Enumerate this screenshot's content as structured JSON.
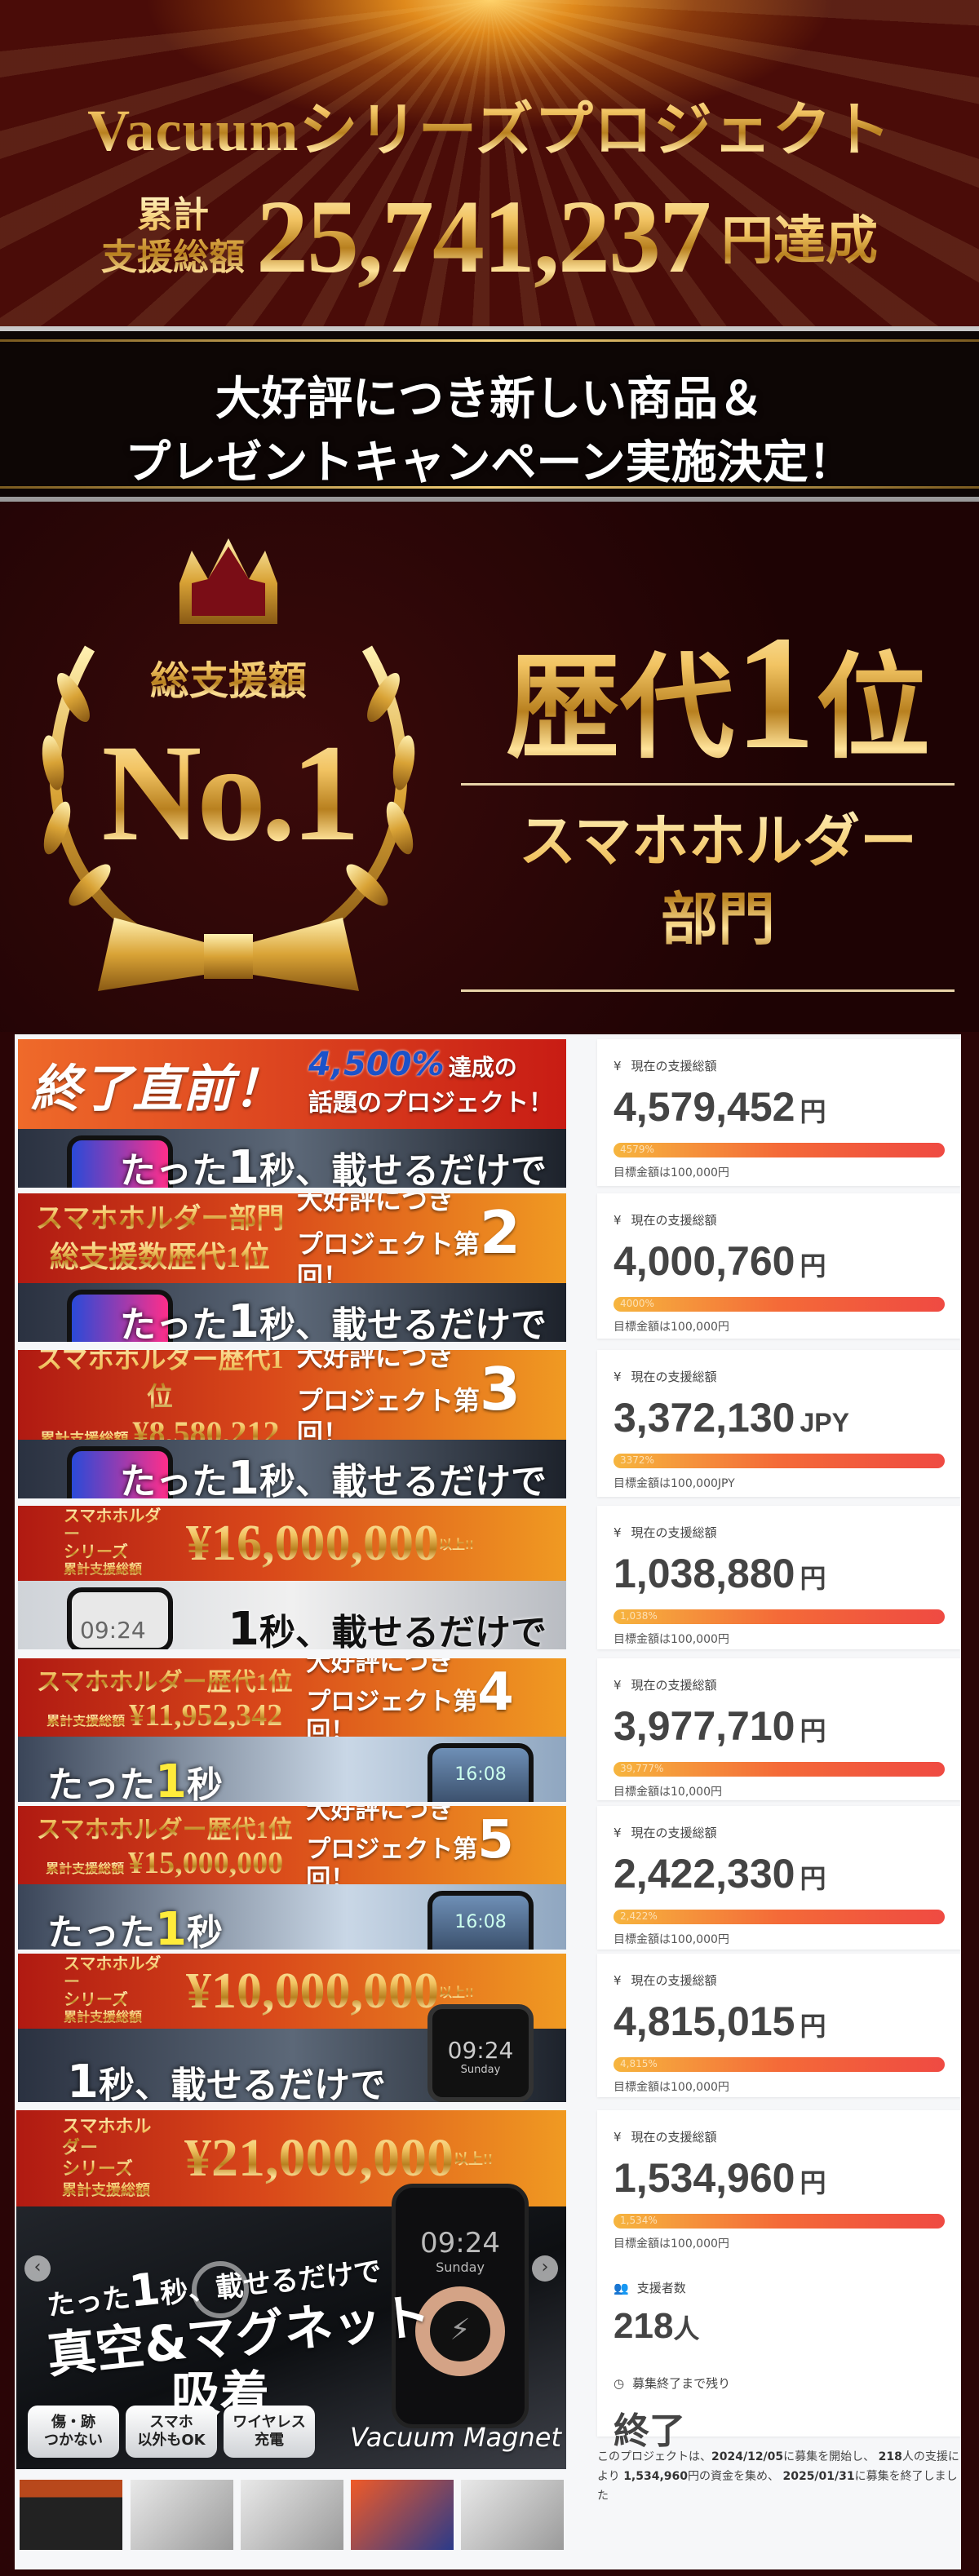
{
  "hero": {
    "title": "Vacuumシリーズプロジェクト",
    "label_line1": "累計",
    "label_line2": "支援総額",
    "amount": "25,741,237",
    "suffix": "円達成"
  },
  "band": {
    "line1": "大好評につき新しい商品＆",
    "line2": "プレゼントキャンペーン実施決定！"
  },
  "badge": {
    "label": "総支援額",
    "no1": "No.1",
    "rank_pre": "歴代",
    "rank_num": "1",
    "rank_post": "位",
    "category_line1": "スマホホルダー",
    "category_line2": "部門"
  },
  "banners": [
    {
      "headline": "終了直前！",
      "sub_pct": "4,500%",
      "sub1": "達成の",
      "sub2": "話題のプロジェクト！",
      "caption_pre": "たった",
      "caption_num": "1",
      "caption_post": "秒、載せるだけで"
    },
    {
      "award1": "スマホホルダー部門",
      "award2": "総支援数歴代1位",
      "popular": "大好評につき",
      "project": "プロジェクト第",
      "round": "2",
      "round_suffix": "回！",
      "caption_pre": "たった",
      "caption_num": "1",
      "caption_post": "秒、載せるだけで"
    },
    {
      "award1": "スマホホルダー歴代1位",
      "award_label": "累計支援総額",
      "award_amount": "¥8,580,212",
      "popular": "大好評につき",
      "project": "プロジェクト第",
      "round": "3",
      "round_suffix": "回！",
      "caption_pre": "たった",
      "caption_num": "1",
      "caption_post": "秒、載せるだけで"
    },
    {
      "series1": "スマホホルダー",
      "series2": "シリーズ",
      "series3": "累計支援総額",
      "amount": "¥16,000,000",
      "amount_suffix": "以上!!",
      "clock": "09:24",
      "caption_num": "1",
      "caption_post": "秒、載せるだけで"
    },
    {
      "award1": "スマホホルダー歴代1位",
      "award_label": "累計支援総額",
      "award_amount": "¥11,952,342",
      "popular": "大好評につき",
      "project": "プロジェクト第",
      "round": "4",
      "round_suffix": "回！",
      "clock": "16:08",
      "caption_pre": "たった",
      "caption_num": "1",
      "caption_post": "秒"
    },
    {
      "award1": "スマホホルダー歴代1位",
      "award_label": "累計支援総額",
      "award_amount": "¥15,000,000",
      "popular": "大好評につき",
      "project": "プロジェクト第",
      "round": "5",
      "round_suffix": "回！",
      "clock": "16:08",
      "caption_pre": "たった",
      "caption_num": "1",
      "caption_post": "秒"
    },
    {
      "series1": "スマホホルダー",
      "series2": "シリーズ",
      "series3": "累計支援総額",
      "amount": "¥10,000,000",
      "amount_suffix": "以上!!",
      "clock": "09:24",
      "clock_day": "Sunday",
      "caption_num": "1",
      "caption_post": "秒、載せるだけで"
    }
  ],
  "main_banner": {
    "series1": "スマホホルダー",
    "series2": "シリーズ",
    "series3": "累計支援総額",
    "amount": "¥21,000,000",
    "amount_suffix": "以上!!",
    "caption_pre": "たった",
    "caption_num": "1",
    "caption_post": "秒、載せるだけで",
    "headline1": "真空&マグネット",
    "headline2": "吸着",
    "clock": "09:24",
    "clock_day": "Sunday",
    "features": [
      "傷・跡\nつかない",
      "スマホ\n以外もOK",
      "ワイヤレス\n充電"
    ],
    "brand": "Vacuum Magnet",
    "prev_icon": "chevron-left-icon",
    "next_icon": "chevron-right-icon",
    "thumbnail_count_label": ""
  },
  "cards": [
    {
      "label": "現在の支援総額",
      "amount": "4,579,452",
      "unit": "円",
      "percent_label": "4579%",
      "percent": 4579,
      "goal": "目標金額は100,000円"
    },
    {
      "label": "現在の支援総額",
      "amount": "4,000,760",
      "unit": "円",
      "percent_label": "4000%",
      "percent": 4000,
      "goal": "目標金額は100,000円"
    },
    {
      "label": "現在の支援総額",
      "amount": "3,372,130",
      "unit": "JPY",
      "percent_label": "3372%",
      "percent": 3372,
      "goal": "目標金額は100,000JPY"
    },
    {
      "label": "現在の支援総額",
      "amount": "1,038,880",
      "unit": "円",
      "percent_label": "1,038%",
      "percent": 1038,
      "goal": "目標金額は100,000円"
    },
    {
      "label": "現在の支援総額",
      "amount": "3,977,710",
      "unit": "円",
      "percent_label": "39,777%",
      "percent": 39777,
      "goal": "目標金額は10,000円"
    },
    {
      "label": "現在の支援総額",
      "amount": "2,422,330",
      "unit": "円",
      "percent_label": "2,422%",
      "percent": 2422,
      "goal": "目標金額は100,000円"
    },
    {
      "label": "現在の支援総額",
      "amount": "4,815,015",
      "unit": "円",
      "percent_label": "4,815%",
      "percent": 4815,
      "goal": "目標金額は100,000円"
    },
    {
      "label": "現在の支援総額",
      "amount": "1,534,960",
      "unit": "円",
      "percent_label": "1,534%",
      "percent": 1534,
      "goal": "目標金額は100,000円",
      "backers_label": "支援者数",
      "backers": "218",
      "backers_unit": "人",
      "remaining_label": "募集終了まで残り",
      "remaining": "終了"
    }
  ],
  "summary": {
    "t1": "このプロジェクトは、",
    "start": "2024/12/05",
    "t2": "に募集を開始し、",
    "backers": "218",
    "t3": "人の支援により",
    "amount": "1,534,960",
    "t4": "円の資金を集め、",
    "end": "2025/01/31",
    "t5": "に募集を終了しました"
  },
  "icons": {
    "currency": "yen-icon",
    "backers": "users-icon",
    "time": "clock-icon"
  },
  "colors": {
    "bar_start": "#f6b53e",
    "bar_end": "#ef4a42",
    "background": "#2a0506",
    "gold": "#f2c463",
    "banner_orange": "#f09a22",
    "banner_red": "#b01a12"
  }
}
